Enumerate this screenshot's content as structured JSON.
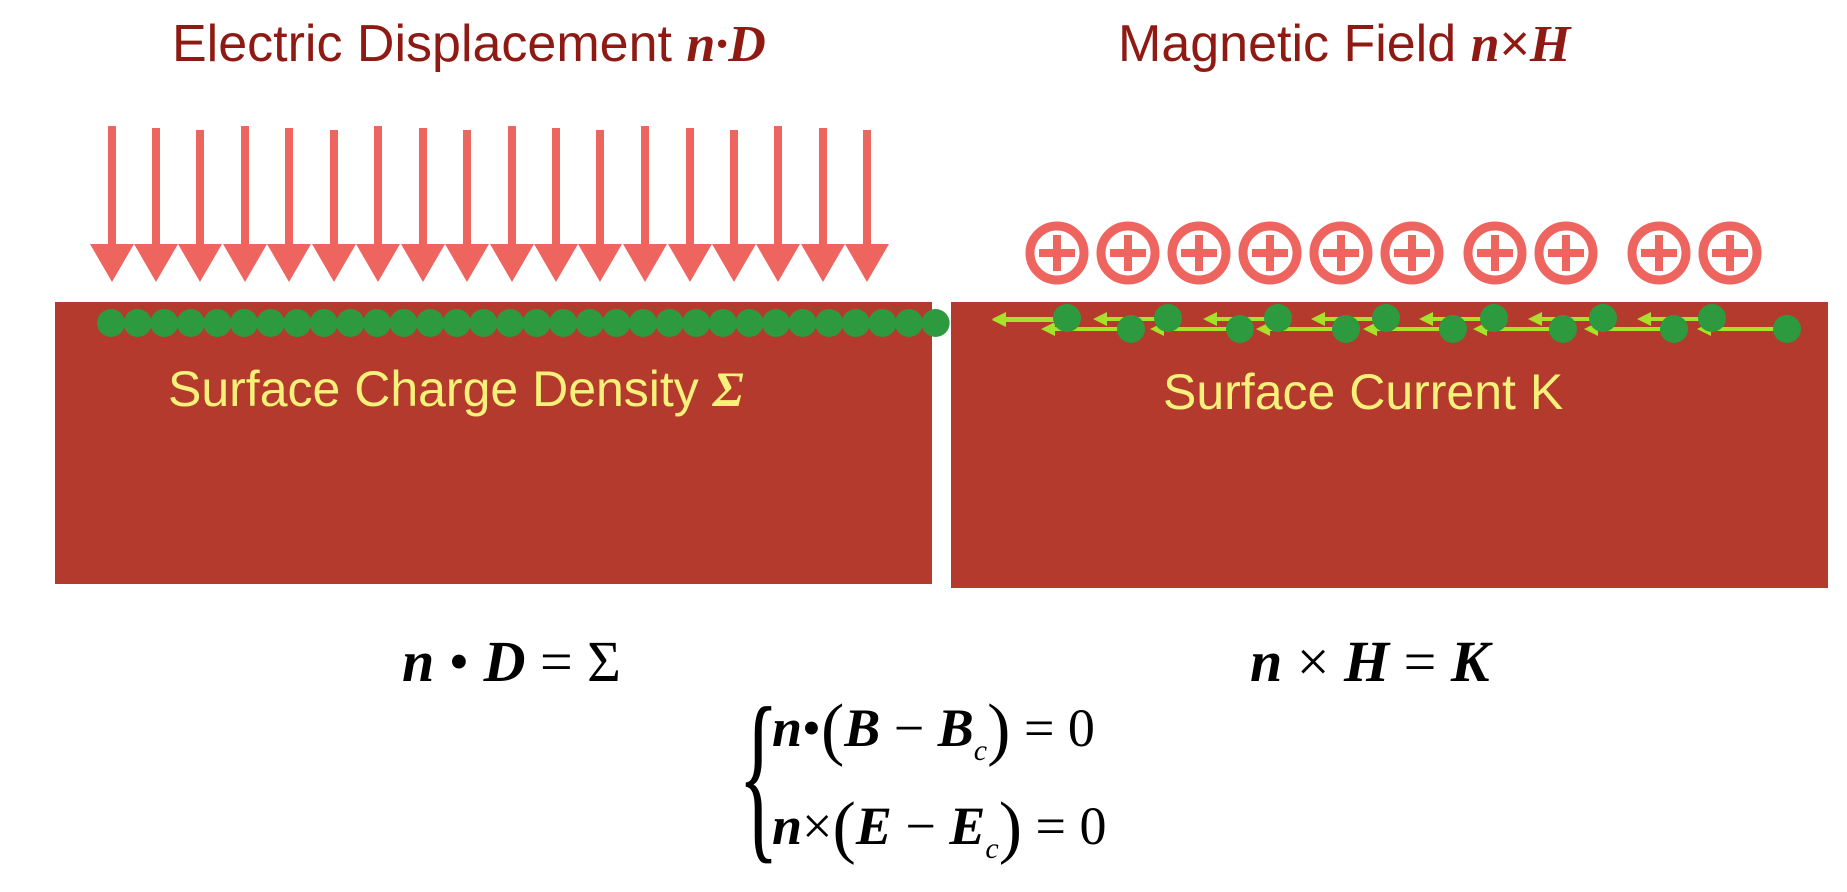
{
  "left": {
    "title_text": "Electric Displacement ",
    "title_math": "n·D",
    "label_text": "Surface Charge Density ",
    "label_symbol": "Σ",
    "equation": {
      "n": "n",
      "op": " • ",
      "D": "D",
      "eq": " = Σ"
    }
  },
  "right": {
    "title_text": "Magnetic Field ",
    "title_n": "n",
    "title_cross": "×",
    "title_H": "H",
    "label_text": "Surface Current K",
    "equation": {
      "n": "n",
      "op": " × ",
      "H": "H",
      "eq": " = ",
      "K": "K"
    }
  },
  "system": {
    "brace": "{",
    "line1": {
      "n": "n",
      "op": "•",
      "open": "(",
      "B": "B",
      "minus": " − ",
      "Bc": "B",
      "sub": "c",
      "close": ")",
      "rhs": " = 0"
    },
    "line2": {
      "n": "n",
      "op": "×",
      "open": "(",
      "E": "E",
      "minus": " − ",
      "Ec": "E",
      "sub": "c",
      "close": ")",
      "rhs": " = 0"
    }
  },
  "colors": {
    "title": "#8e1a13",
    "slab": "#b33a2c",
    "label": "#f5f17a",
    "arrow": "#ee6560",
    "charge": "#2e9a3f",
    "current": "#a6e22a"
  },
  "icons": {
    "field_arrow": "down-arrow-icon",
    "into_page": "circle-plus-icon",
    "charge": "charge-dot-icon",
    "current": "left-arrow-icon"
  }
}
